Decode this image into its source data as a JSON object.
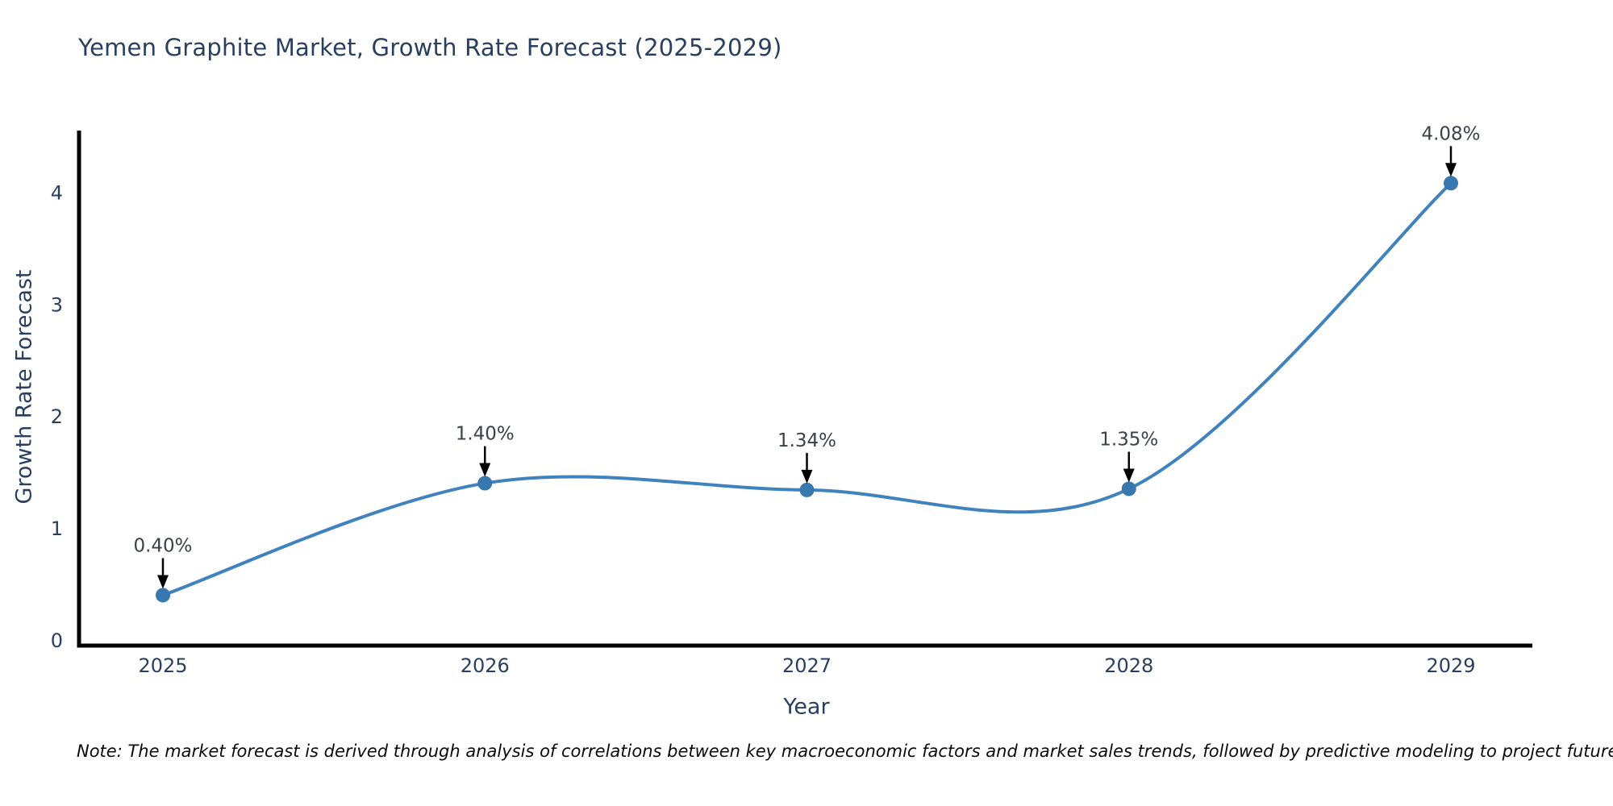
{
  "title": "Yemen Graphite Market, Growth Rate Forecast (2025-2029)",
  "note": "Note: The market forecast is derived through analysis of correlations between key macroeconomic factors and market sales trends, followed by predictive modeling to project future sales.",
  "chart_data": {
    "type": "line",
    "title": "Yemen Graphite Market, Growth Rate Forecast (2025-2029)",
    "xlabel": "Year",
    "ylabel": "Growth Rate Forecast",
    "categories": [
      2025,
      2026,
      2027,
      2028,
      2029
    ],
    "values": [
      0.4,
      1.4,
      1.34,
      1.35,
      4.08
    ],
    "point_labels": [
      "0.40%",
      "1.40%",
      "1.34%",
      "1.35%",
      "4.08%"
    ],
    "yticks": [
      0,
      1,
      2,
      3,
      4
    ],
    "ylim": [
      0,
      4.6
    ],
    "grid": false,
    "legend_position": "none",
    "line_smoothing": "spline",
    "annotation_style": "label-with-down-arrow",
    "colors": {
      "line": "#3f82bd",
      "marker": "#3778af",
      "axis": "#000000",
      "tick_text": "#2a3f5f",
      "annotation_text": "#3b4149",
      "title_text": "#2a3f5f",
      "note_text": "#0a0a0a",
      "background": "#ffffff"
    }
  }
}
